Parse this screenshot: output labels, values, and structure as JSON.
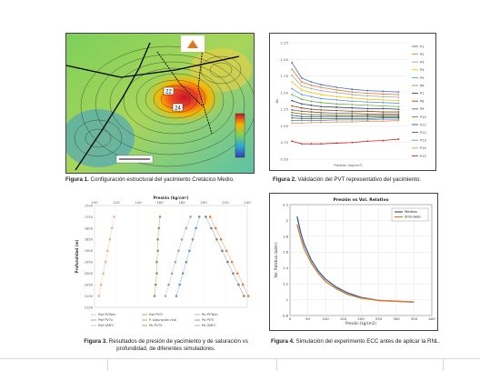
{
  "figures": [
    {
      "id": 1,
      "label": "Figura 1.",
      "text": "Configuración estructural del yacimiento Cretácico Medio.",
      "map": {
        "labels": [
          "22",
          "24"
        ]
      }
    },
    {
      "id": 2,
      "label": "Figura 2.",
      "text": "Validación del PVT representativo del yacimiento.",
      "chart_data": {
        "type": "line",
        "xlabel": "Presión (kg/cm²)",
        "ylabel": "Bo",
        "ylim": [
          0.5,
          2.25
        ],
        "yticks": [
          "2.25",
          "2.00",
          "1.75",
          "1.50",
          "1.25",
          "1.00",
          "0.75",
          "0.50"
        ],
        "x": [
          5,
          30,
          55,
          80,
          120,
          160,
          200,
          240,
          280
        ],
        "series": [
          {
            "name": "P1",
            "color": "#4472c4",
            "values": [
              1.95,
              1.72,
              1.66,
              1.62,
              1.58,
              1.55,
              1.53,
              1.52,
              1.51
            ]
          },
          {
            "name": "P2",
            "color": "#ed7d31",
            "values": [
              1.85,
              1.66,
              1.61,
              1.58,
              1.54,
              1.51,
              1.49,
              1.48,
              1.47
            ]
          },
          {
            "name": "P3",
            "color": "#a5a5a5",
            "values": [
              1.76,
              1.6,
              1.56,
              1.53,
              1.5,
              1.47,
              1.45,
              1.44,
              1.43
            ]
          },
          {
            "name": "P4",
            "color": "#ffc000",
            "values": [
              1.66,
              1.54,
              1.5,
              1.47,
              1.44,
              1.42,
              1.4,
              1.39,
              1.38
            ]
          },
          {
            "name": "P5",
            "color": "#5b9bd5",
            "values": [
              1.56,
              1.47,
              1.44,
              1.41,
              1.39,
              1.37,
              1.36,
              1.35,
              1.34
            ]
          },
          {
            "name": "P6",
            "color": "#70ad47",
            "values": [
              1.47,
              1.4,
              1.37,
              1.35,
              1.33,
              1.32,
              1.31,
              1.3,
              1.29
            ]
          },
          {
            "name": "P7",
            "color": "#264478",
            "values": [
              1.38,
              1.33,
              1.31,
              1.29,
              1.28,
              1.27,
              1.26,
              1.26,
              1.25
            ]
          },
          {
            "name": "P8",
            "color": "#9e480e",
            "values": [
              1.3,
              1.27,
              1.25,
              1.24,
              1.23,
              1.22,
              1.22,
              1.21,
              1.21
            ]
          },
          {
            "name": "P9",
            "color": "#636363",
            "values": [
              1.24,
              1.22,
              1.21,
              1.2,
              1.19,
              1.19,
              1.18,
              1.18,
              1.18
            ]
          },
          {
            "name": "P10",
            "color": "#997300",
            "values": [
              1.2,
              1.18,
              1.17,
              1.17,
              1.16,
              1.16,
              1.16,
              1.16,
              1.16
            ]
          },
          {
            "name": "P11",
            "color": "#255e91",
            "values": [
              1.16,
              1.14,
              1.14,
              1.14,
              1.14,
              1.14,
              1.14,
              1.14,
              1.14
            ]
          },
          {
            "name": "P12",
            "color": "#43682b",
            "values": [
              1.12,
              1.11,
              1.11,
              1.11,
              1.11,
              1.11,
              1.11,
              1.12,
              1.12
            ]
          },
          {
            "name": "P13",
            "color": "#698ed0",
            "values": [
              1.08,
              1.08,
              1.08,
              1.08,
              1.09,
              1.09,
              1.09,
              1.1,
              1.1
            ]
          },
          {
            "name": "P14",
            "color": "#f1975a",
            "values": [
              1.04,
              1.04,
              1.05,
              1.05,
              1.06,
              1.06,
              1.07,
              1.07,
              1.08
            ]
          },
          {
            "name": "P15",
            "color": "#d62728",
            "values": [
              0.77,
              0.73,
              0.73,
              0.73,
              0.74,
              0.75,
              0.77,
              0.78,
              0.8
            ]
          }
        ]
      }
    },
    {
      "id": 3,
      "label": "Figura 3.",
      "text": "Resultados de presión de yacimiento y de saturación vs profundidad, de diferentes simuladores.",
      "chart_data": {
        "type": "scatter",
        "xlabel": "Presión (kg/cm²)",
        "ylabel": "Profundidad (m)",
        "xticks": [
          "100",
          "120",
          "140",
          "160",
          "180",
          "200",
          "220",
          "240"
        ],
        "xlim": [
          100,
          240
        ],
        "yticks": [
          "1700",
          "1750",
          "1800",
          "1850",
          "1900",
          "1950",
          "2000",
          "2050",
          "2100",
          "2150"
        ],
        "ylim": [
          1700,
          2150
        ],
        "legend": [
          "Pwf PVTsim",
          "Pwf PVTi",
          "Pb PVTsim",
          "Pwf PVTx",
          "P. saturación real",
          "Pb PVTi",
          "Pwf GMFC",
          "Pb PVTX",
          "Pb GMFC"
        ],
        "series": [
          {
            "name": "Pwf PVTsim",
            "color": "#f4b183",
            "points": [
              [
                118,
                1750
              ],
              [
                116,
                1800
              ],
              [
                114,
                1850
              ],
              [
                112,
                1900
              ],
              [
                110,
                1950
              ],
              [
                108,
                2000
              ],
              [
                106,
                2050
              ],
              [
                104,
                2100
              ]
            ]
          },
          {
            "name": "Pb PVTsim",
            "color": "#70ad47",
            "points": [
              [
                160,
                1750
              ],
              [
                159,
                1800
              ],
              [
                158,
                1850
              ],
              [
                158,
                1900
              ],
              [
                157,
                1950
              ],
              [
                157,
                2000
              ],
              [
                156,
                2050
              ],
              [
                155,
                2100
              ]
            ]
          },
          {
            "name": "Pwf PVTx",
            "color": "#a5a5a5",
            "points": [
              [
                188,
                1750
              ],
              [
                184,
                1800
              ],
              [
                180,
                1850
              ],
              [
                177,
                1900
              ],
              [
                174,
                1950
              ],
              [
                171,
                2000
              ],
              [
                168,
                2050
              ],
              [
                165,
                2100
              ]
            ]
          },
          {
            "name": "Pb PVTi",
            "color": "#5b9bd5",
            "points": [
              [
                196,
                1750
              ],
              [
                193,
                1800
              ],
              [
                190,
                1850
              ],
              [
                187,
                1900
              ],
              [
                184,
                1950
              ],
              [
                181,
                2000
              ],
              [
                178,
                2050
              ],
              [
                175,
                2100
              ]
            ]
          },
          {
            "name": "Pwf GMFC",
            "color": "#ed7d31",
            "points": [
              [
                206,
                1750
              ],
              [
                211,
                1800
              ],
              [
                216,
                1850
              ],
              [
                221,
                1900
              ],
              [
                226,
                1950
              ],
              [
                231,
                2000
              ],
              [
                236,
                2050
              ],
              [
                241,
                2100
              ]
            ]
          },
          {
            "name": "Pb GMFC",
            "color": "#7f7f7f",
            "points": [
              [
                202,
                1750
              ],
              [
                207,
                1800
              ],
              [
                212,
                1850
              ],
              [
                217,
                1900
              ],
              [
                222,
                1950
              ],
              [
                227,
                2000
              ],
              [
                232,
                2050
              ],
              [
                237,
                2100
              ]
            ]
          }
        ]
      }
    },
    {
      "id": 4,
      "label": "Figura 4.",
      "text": "Simulación del experimento ECC antes de aplicar la RNL.",
      "chart_data": {
        "type": "line",
        "title": "Presión vs Vol. Relativo",
        "xlabel": "Presión (kg/cm2)",
        "ylabel": "Vol. Relativo (adim)",
        "xticks": [
          "0",
          "50",
          "100",
          "150",
          "200",
          "250",
          "300",
          "350",
          "400"
        ],
        "xlim": [
          0,
          400
        ],
        "yticks": [
          "0.8",
          "1",
          "1.2",
          "1.4",
          "1.6",
          "1.8",
          "2",
          "2.2"
        ],
        "ylim": [
          0.8,
          2.2
        ],
        "legend": [
          "Medido",
          "Simulado"
        ],
        "series": [
          {
            "name": "Medido",
            "color": "#2e5fa8",
            "x": [
              20,
              30,
              40,
              60,
              80,
              100,
              130,
              160,
              200,
              250,
              300,
              350
            ],
            "values": [
              2.05,
              1.85,
              1.7,
              1.5,
              1.36,
              1.26,
              1.16,
              1.09,
              1.03,
              0.99,
              0.98,
              0.97
            ]
          },
          {
            "name": "Simulado",
            "color": "#e07b2a",
            "x": [
              20,
              30,
              40,
              60,
              80,
              100,
              130,
              160,
              200,
              250,
              300,
              350
            ],
            "values": [
              1.95,
              1.78,
              1.64,
              1.46,
              1.33,
              1.23,
              1.14,
              1.07,
              1.02,
              0.99,
              0.98,
              0.97
            ]
          }
        ]
      }
    }
  ]
}
